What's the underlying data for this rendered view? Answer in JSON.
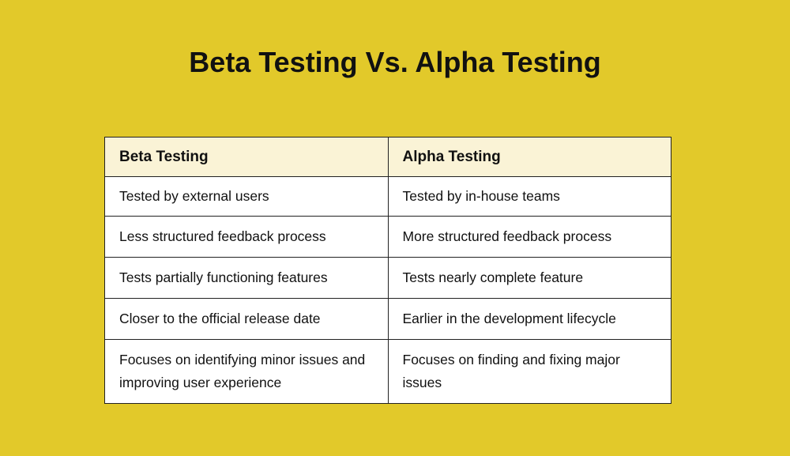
{
  "title": "Beta Testing Vs. Alpha Testing",
  "colors": {
    "background": "#E2C92A",
    "header_fill": "#FAF3D6"
  },
  "table": {
    "headers": [
      "Beta Testing",
      "Alpha Testing"
    ],
    "rows": [
      [
        "Tested by external users",
        "Tested by in-house teams"
      ],
      [
        "Less structured feedback process",
        "More structured feedback process"
      ],
      [
        "Tests partially functioning features",
        "Tests nearly complete feature"
      ],
      [
        "Closer to the official release date",
        "Earlier in the development lifecycle"
      ],
      [
        "Focuses on identifying minor issues and improving user experience",
        "Focuses on finding and fixing major issues"
      ]
    ]
  }
}
